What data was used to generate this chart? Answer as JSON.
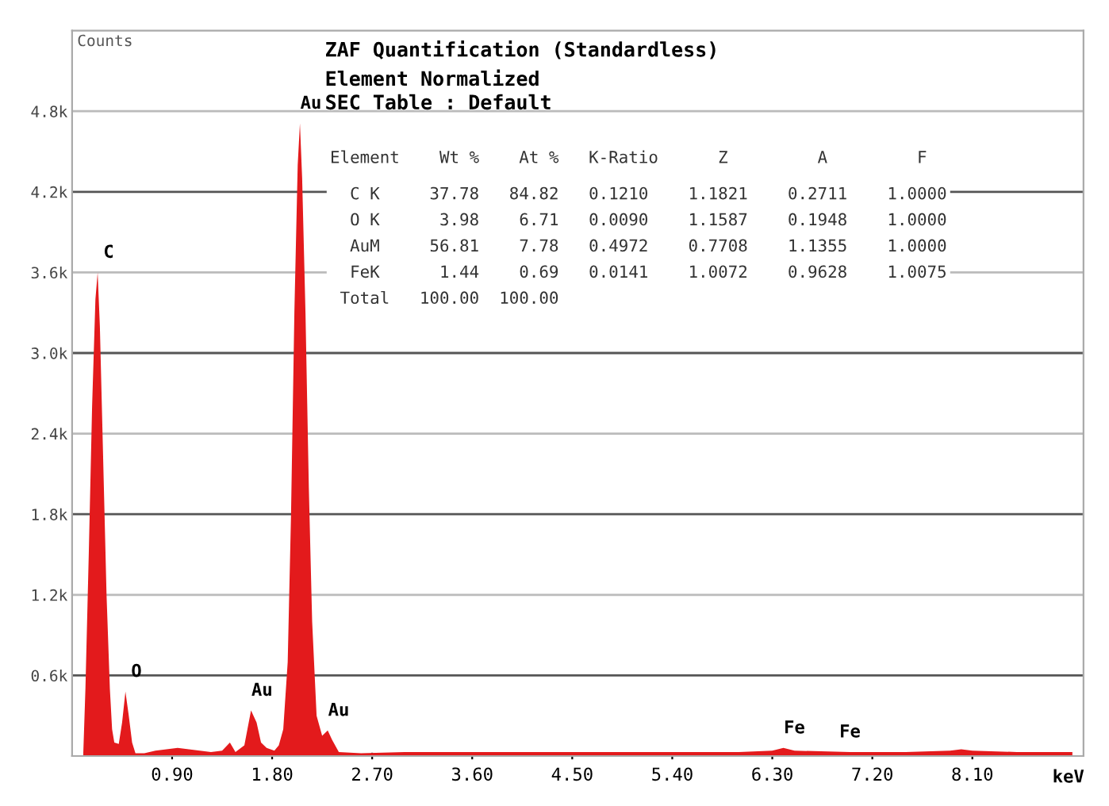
{
  "chart_data": {
    "type": "area",
    "title": "ZAF Quantification (Standardless)",
    "subtitle": "Element Normalized\nSEC Table : Default",
    "ylabel": "Counts",
    "xlabel": "keV",
    "x": [
      0.1,
      0.12,
      0.15,
      0.18,
      0.21,
      0.23,
      0.25,
      0.28,
      0.31,
      0.34,
      0.36,
      0.38,
      0.42,
      0.45,
      0.48,
      0.51,
      0.54,
      0.57,
      0.65,
      0.75,
      0.85,
      0.95,
      1.05,
      1.15,
      1.25,
      1.35,
      1.42,
      1.47,
      1.55,
      1.61,
      1.66,
      1.7,
      1.75,
      1.82,
      1.86,
      1.9,
      1.94,
      1.97,
      2.0,
      2.03,
      2.05,
      2.07,
      2.1,
      2.13,
      2.16,
      2.2,
      2.25,
      2.3,
      2.34,
      2.4,
      2.6,
      3.0,
      3.5,
      4.0,
      4.5,
      5.0,
      5.5,
      6.0,
      6.3,
      6.4,
      6.5,
      7.0,
      7.5,
      7.9,
      8.0,
      8.1,
      8.5,
      9.0
    ],
    "series": [
      {
        "color": "#e31a1c",
        "values": [
          0,
          500,
          1500,
          2600,
          3400,
          3600,
          3200,
          2200,
          1200,
          500,
          200,
          100,
          90,
          250,
          480,
          300,
          100,
          20,
          20,
          40,
          50,
          60,
          50,
          40,
          30,
          40,
          100,
          30,
          80,
          340,
          250,
          100,
          60,
          40,
          80,
          200,
          700,
          1800,
          3300,
          4400,
          4710,
          4300,
          3300,
          2000,
          1000,
          300,
          150,
          190,
          120,
          30,
          20,
          30,
          30,
          30,
          30,
          30,
          30,
          30,
          40,
          60,
          40,
          30,
          30,
          40,
          50,
          40,
          30,
          30
        ]
      }
    ],
    "xlim": [
      0,
      9.1
    ],
    "ylim": [
      0,
      5400
    ],
    "xticks": [
      {
        "value": 0.9,
        "label": "0.90"
      },
      {
        "value": 1.8,
        "label": "1.80"
      },
      {
        "value": 2.7,
        "label": "2.70"
      },
      {
        "value": 3.6,
        "label": "3.60"
      },
      {
        "value": 4.5,
        "label": "4.50"
      },
      {
        "value": 5.4,
        "label": "5.40"
      },
      {
        "value": 6.3,
        "label": "6.30"
      },
      {
        "value": 7.2,
        "label": "7.20"
      },
      {
        "value": 8.1,
        "label": "8.10"
      }
    ],
    "yticks": [
      {
        "value": 600,
        "label": "0.6k"
      },
      {
        "value": 1200,
        "label": "1.2k"
      },
      {
        "value": 1800,
        "label": "1.8k"
      },
      {
        "value": 2400,
        "label": "2.4k"
      },
      {
        "value": 3000,
        "label": "3.0k"
      },
      {
        "value": 3600,
        "label": "3.6k"
      },
      {
        "value": 4200,
        "label": "4.2k"
      },
      {
        "value": 4800,
        "label": "4.8k"
      }
    ],
    "grid": "y",
    "annotations": [
      {
        "text": "C",
        "x": 0.23,
        "y": 3600
      },
      {
        "text": "O",
        "x": 0.48,
        "y": 480
      },
      {
        "text": "Au",
        "x": 1.61,
        "y": 340
      },
      {
        "text": "Au",
        "x": 2.05,
        "y": 4710
      },
      {
        "text": "Au",
        "x": 2.3,
        "y": 190
      },
      {
        "text": "Fe",
        "x": 6.4,
        "y": 60
      },
      {
        "text": "Fe",
        "x": 6.9,
        "y": 30
      },
      "Element    Wt %    At %   K-Ratio      Z         A         F",
      "  C K     37.78   84.82   0.1210    1.1821    0.2711    1.0000",
      "  O K      3.98    6.71   0.0090    1.1587    0.1948    1.0000",
      "  AuM     56.81    7.78   0.4972    0.7708    1.1355    1.0000",
      "  FeK      1.44    0.69   0.0141    1.0072    0.9628    1.0075",
      " Total   100.00  100.00"
    ]
  }
}
